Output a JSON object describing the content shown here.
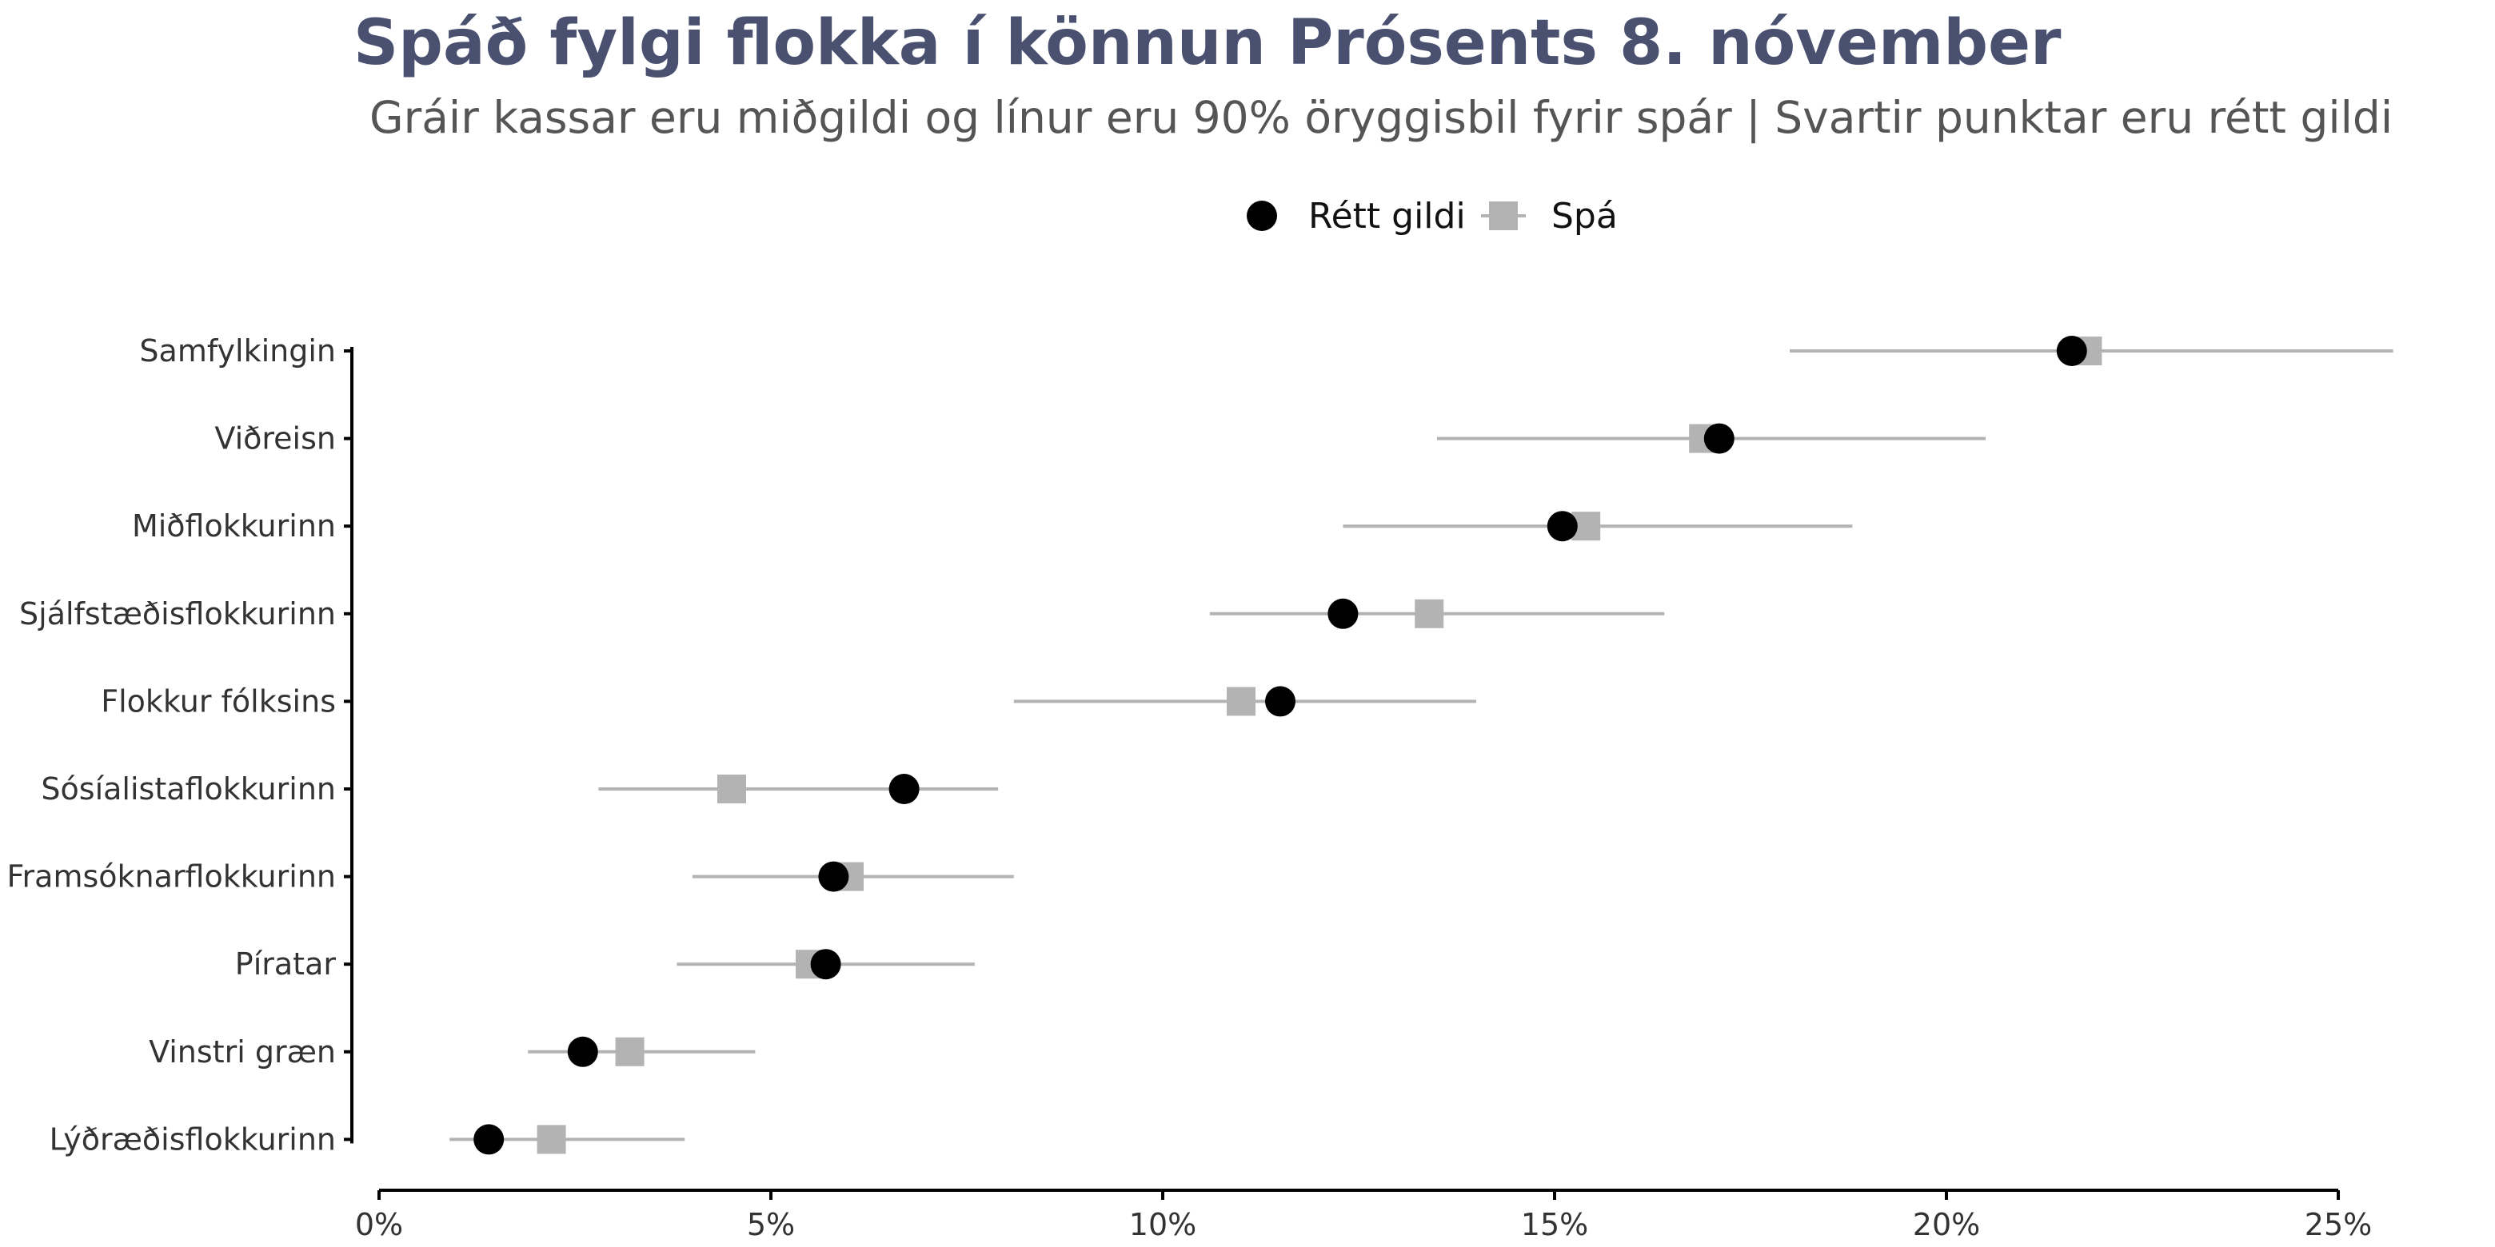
{
  "title": "Spáð fylgi flokka í könnun Prósents 8. nóvember",
  "subtitle": "Gráir kassar eru miðgildi og línur eru 90% öryggisbil fyrir spár | Svartir punktar eru rétt gildi",
  "legend": {
    "actual_label": "Rétt gildi",
    "forecast_label": "Spá"
  },
  "colors": {
    "title": "#4a5070",
    "actual": "#000000",
    "forecast": "#b3b3b3",
    "interval": "#b3b3b3",
    "axis": "#000000"
  },
  "chart_data": {
    "type": "scatter",
    "title": "Spáð fylgi flokka í könnun Prósents 8. nóvember",
    "subtitle": "Gráir kassar eru miðgildi og línur eru 90% öryggisbil fyrir spár | Svartir punktar eru rétt gildi",
    "xlabel": "",
    "ylabel": "",
    "xlim": [
      0,
      25
    ],
    "x_ticks": [
      0,
      5,
      10,
      15,
      20,
      25
    ],
    "x_tick_labels": [
      "0%",
      "5%",
      "10%",
      "15%",
      "20%",
      "25%"
    ],
    "grid": false,
    "legend_position": "top",
    "categories": [
      "Samfylkingin",
      "Viðreisn",
      "Miðflokkurinn",
      "Sjálfstæðisflokkurinn",
      "Flokkur fólksins",
      "Sósíalistaflokkurinn",
      "Framsóknarflokkurinn",
      "Píratar",
      "Vinstri græn",
      "Lýðræðisflokkurinn"
    ],
    "series": [
      {
        "name": "Rétt gildi",
        "values": [
          21.6,
          17.1,
          15.1,
          12.3,
          11.5,
          6.7,
          5.8,
          5.7,
          2.6,
          1.4
        ]
      },
      {
        "name": "Spá",
        "values": [
          21.8,
          16.9,
          15.4,
          13.4,
          11.0,
          4.5,
          6.0,
          5.5,
          3.2,
          2.2
        ]
      }
    ],
    "interval_low": [
      18.0,
      13.5,
      12.3,
      10.6,
      8.1,
      2.8,
      4.0,
      3.8,
      1.9,
      0.9
    ],
    "interval_high": [
      25.7,
      20.5,
      18.8,
      16.4,
      14.0,
      7.9,
      8.1,
      7.6,
      4.8,
      3.9
    ]
  }
}
